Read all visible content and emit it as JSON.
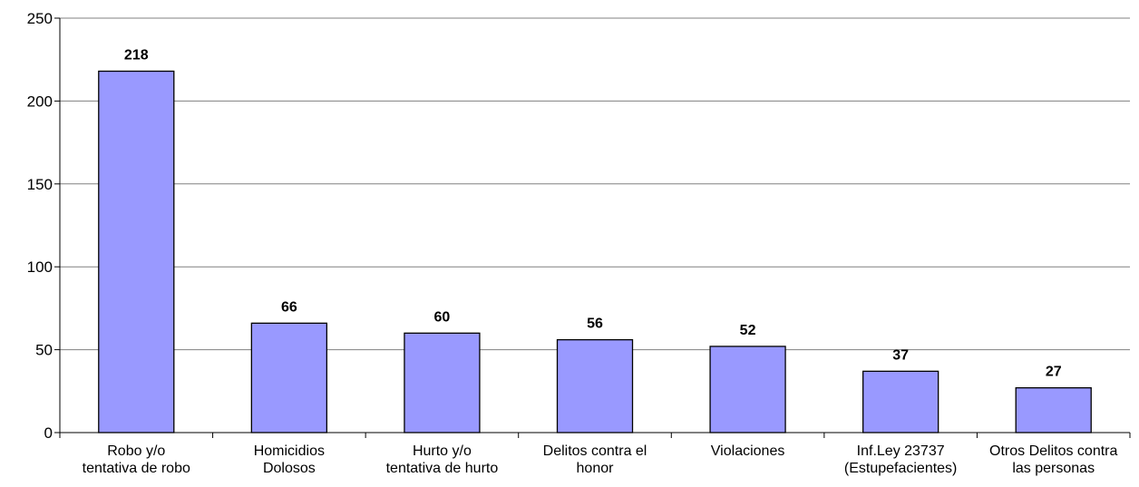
{
  "chart_data": {
    "type": "bar",
    "categories": [
      [
        "Robo y/o",
        "tentativa de robo"
      ],
      [
        "Homicidios",
        "Dolosos"
      ],
      [
        "Hurto y/o",
        "tentativa de hurto"
      ],
      [
        "Delitos contra el",
        "honor"
      ],
      [
        "Violaciones"
      ],
      [
        "Inf.Ley 23737",
        "(Estupefacientes)"
      ],
      [
        "Otros Delitos contra",
        "las personas"
      ]
    ],
    "values": [
      218,
      66,
      60,
      56,
      52,
      37,
      27
    ],
    "value_labels": [
      "218",
      "66",
      "60",
      "56",
      "52",
      "37",
      "27"
    ],
    "ylim": [
      0,
      250
    ],
    "yticks": [
      0,
      50,
      100,
      150,
      200,
      250
    ],
    "ytick_labels": [
      "0",
      "50",
      "100",
      "150",
      "200",
      "250"
    ],
    "grid": true,
    "legend": "none",
    "colors": {
      "bar_fill": "#9999FF",
      "bar_stroke": "#000000",
      "grid": "#808080",
      "axis": "#000000"
    }
  }
}
